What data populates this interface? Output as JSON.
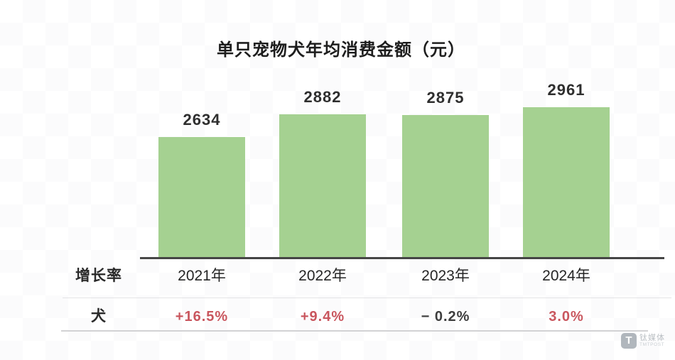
{
  "chart_data": {
    "type": "bar",
    "title": "单只宠物犬年均消费金额（元）",
    "categories": [
      "2021年",
      "2022年",
      "2023年",
      "2024年"
    ],
    "values": [
      2634,
      2882,
      2875,
      2961
    ],
    "bar_color": "#a5d191",
    "value_labels_shown": true,
    "grid": false,
    "legend_position": "none",
    "ylim": [
      0,
      3200
    ],
    "growth_row": {
      "header": "增长率",
      "series_label": "犬",
      "values": [
        "+16.5%",
        "+9.4%",
        "− 0.2%",
        "3.0%"
      ],
      "colors": [
        "#c9565e",
        "#c9565e",
        "#3d3d3d",
        "#c9565e"
      ],
      "positive_color": "#c9565e",
      "negative_color": "#3d3d3d"
    }
  },
  "watermark": {
    "logo_letter": "T",
    "brand_cn": "钛媒体",
    "brand_en": "TMTPOST"
  }
}
